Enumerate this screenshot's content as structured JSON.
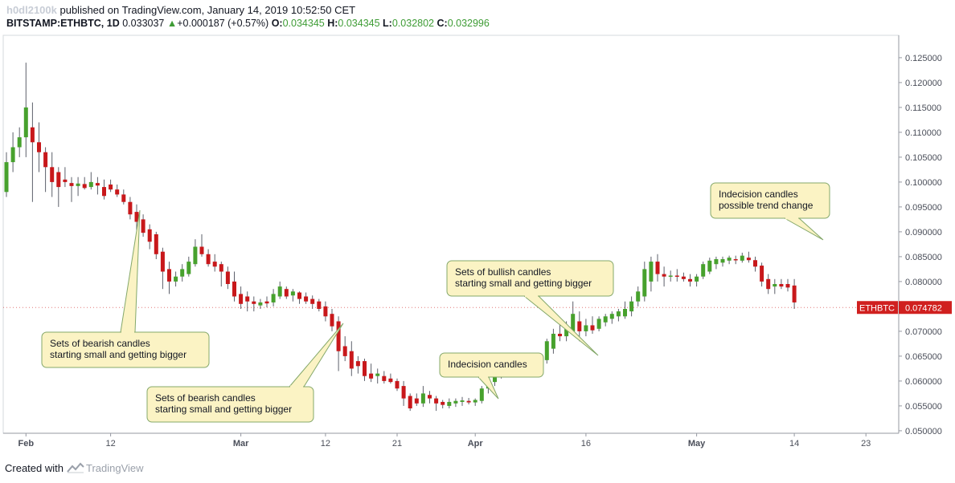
{
  "header": {
    "username": "h0dl2100k",
    "published_text": " published on TradingView.com, January 14, 2019 10:52:50 CET",
    "symbol": "BITSTAMP:ETHBTC, 1D",
    "last": "0.033037",
    "change_arrow": "▲",
    "change": "+0.000187 (+0.57%)",
    "o_label": "O:",
    "o_value": "0.034345",
    "h_label": "H:",
    "h_value": "0.034345",
    "l_label": "L:",
    "l_value": "0.032802",
    "c_label": "C:",
    "c_value": "0.032996"
  },
  "footer": {
    "created_with": "Created with",
    "brand": "TradingView"
  },
  "colors": {
    "up": "#47a12d",
    "down": "#c8181b",
    "wick": "#5d606b",
    "callout_fill": "#fbf3c4",
    "callout_stroke": "#84a86a",
    "price_tag": "#d0201f",
    "axis": "#9598a1"
  },
  "chart_data": {
    "type": "candlestick",
    "y_ticks": [
      "0.125000",
      "0.120000",
      "0.115000",
      "0.110000",
      "0.105000",
      "0.100000",
      "0.095000",
      "0.090000",
      "0.085000",
      "0.080000",
      "0.075000",
      "0.070000",
      "0.065000",
      "0.060000",
      "0.055000",
      "0.050000"
    ],
    "ylim": [
      0.0495,
      0.1295
    ],
    "x_ticks": [
      {
        "label": "Feb",
        "index": 3,
        "bold": true
      },
      {
        "label": "12",
        "index": 16,
        "bold": false
      },
      {
        "label": "Mar",
        "index": 36,
        "bold": true
      },
      {
        "label": "12",
        "index": 49,
        "bold": false
      },
      {
        "label": "21",
        "index": 60,
        "bold": false
      },
      {
        "label": "Apr",
        "index": 72,
        "bold": true
      },
      {
        "label": "16",
        "index": 89,
        "bold": false
      },
      {
        "label": "May",
        "index": 106,
        "bold": true
      },
      {
        "label": "14",
        "index": 121,
        "bold": false
      },
      {
        "label": "23",
        "index": 132,
        "bold": false
      }
    ],
    "ohlc": [
      [
        0.098,
        0.106,
        0.097,
        0.104
      ],
      [
        0.104,
        0.11,
        0.102,
        0.107
      ],
      [
        0.107,
        0.111,
        0.105,
        0.109
      ],
      [
        0.109,
        0.124,
        0.105,
        0.115
      ],
      [
        0.111,
        0.116,
        0.096,
        0.108
      ],
      [
        0.108,
        0.112,
        0.102,
        0.106
      ],
      [
        0.106,
        0.107,
        0.098,
        0.103
      ],
      [
        0.103,
        0.106,
        0.097,
        0.1
      ],
      [
        0.102,
        0.103,
        0.095,
        0.099
      ],
      [
        0.1005,
        0.103,
        0.099,
        0.1
      ],
      [
        0.0998,
        0.101,
        0.096,
        0.0992
      ],
      [
        0.0992,
        0.101,
        0.0972,
        0.0997
      ],
      [
        0.0996,
        0.101,
        0.0985,
        0.0988
      ],
      [
        0.099,
        0.102,
        0.0985,
        0.1
      ],
      [
        0.0998,
        0.101,
        0.0975,
        0.0993
      ],
      [
        0.099,
        0.1005,
        0.0965,
        0.0972
      ],
      [
        0.0995,
        0.1005,
        0.098,
        0.0985
      ],
      [
        0.0985,
        0.0995,
        0.097,
        0.0975
      ],
      [
        0.0975,
        0.0985,
        0.0955,
        0.096
      ],
      [
        0.096,
        0.097,
        0.0925,
        0.0935
      ],
      [
        0.094,
        0.0955,
        0.09,
        0.092
      ],
      [
        0.0925,
        0.0935,
        0.089,
        0.0898
      ],
      [
        0.0905,
        0.0915,
        0.0865,
        0.088
      ],
      [
        0.0895,
        0.09,
        0.0845,
        0.0855
      ],
      [
        0.086,
        0.0868,
        0.0785,
        0.082
      ],
      [
        0.0825,
        0.084,
        0.0775,
        0.08
      ],
      [
        0.08,
        0.082,
        0.079,
        0.081
      ],
      [
        0.081,
        0.0835,
        0.08,
        0.0825
      ],
      [
        0.0815,
        0.085,
        0.081,
        0.084
      ],
      [
        0.0835,
        0.0885,
        0.083,
        0.087
      ],
      [
        0.087,
        0.0895,
        0.085,
        0.0855
      ],
      [
        0.0855,
        0.0865,
        0.083,
        0.0835
      ],
      [
        0.084,
        0.0855,
        0.082,
        0.083
      ],
      [
        0.0835,
        0.084,
        0.079,
        0.082
      ],
      [
        0.082,
        0.083,
        0.0785,
        0.0795
      ],
      [
        0.08,
        0.082,
        0.076,
        0.077
      ],
      [
        0.0775,
        0.079,
        0.0745,
        0.0755
      ],
      [
        0.077,
        0.078,
        0.074,
        0.076
      ],
      [
        0.076,
        0.077,
        0.074,
        0.0755
      ],
      [
        0.0752,
        0.0765,
        0.0745,
        0.0758
      ],
      [
        0.076,
        0.077,
        0.0748,
        0.0756
      ],
      [
        0.0758,
        0.0785,
        0.075,
        0.0775
      ],
      [
        0.077,
        0.08,
        0.0765,
        0.079
      ],
      [
        0.0785,
        0.079,
        0.0765,
        0.077
      ],
      [
        0.0772,
        0.0785,
        0.076,
        0.078
      ],
      [
        0.0778,
        0.078,
        0.0755,
        0.0765
      ],
      [
        0.077,
        0.0778,
        0.0755,
        0.076
      ],
      [
        0.0765,
        0.0772,
        0.0745,
        0.0755
      ],
      [
        0.076,
        0.0765,
        0.074,
        0.0745
      ],
      [
        0.075,
        0.076,
        0.072,
        0.073
      ],
      [
        0.0735,
        0.0745,
        0.07,
        0.071
      ],
      [
        0.072,
        0.073,
        0.062,
        0.066
      ],
      [
        0.067,
        0.069,
        0.064,
        0.065
      ],
      [
        0.066,
        0.068,
        0.061,
        0.0625
      ],
      [
        0.064,
        0.065,
        0.0615,
        0.063
      ],
      [
        0.064,
        0.0645,
        0.06,
        0.061
      ],
      [
        0.0615,
        0.0635,
        0.0598,
        0.0605
      ],
      [
        0.061,
        0.0625,
        0.0595,
        0.0615
      ],
      [
        0.061,
        0.062,
        0.0595,
        0.06
      ],
      [
        0.0605,
        0.0615,
        0.0595,
        0.0598
      ],
      [
        0.06,
        0.0605,
        0.058,
        0.0585
      ],
      [
        0.059,
        0.06,
        0.055,
        0.0565
      ],
      [
        0.057,
        0.0575,
        0.054,
        0.0545
      ],
      [
        0.0565,
        0.0575,
        0.055,
        0.0555
      ],
      [
        0.0555,
        0.059,
        0.0548,
        0.0575
      ],
      [
        0.0572,
        0.058,
        0.0555,
        0.0565
      ],
      [
        0.0565,
        0.057,
        0.054,
        0.0555
      ],
      [
        0.0558,
        0.0562,
        0.0545,
        0.0552
      ],
      [
        0.055,
        0.0565,
        0.0545,
        0.0558
      ],
      [
        0.0555,
        0.0565,
        0.0548,
        0.056
      ],
      [
        0.0558,
        0.0568,
        0.055,
        0.0561
      ],
      [
        0.056,
        0.0566,
        0.0553,
        0.0557
      ],
      [
        0.0557,
        0.0565,
        0.055,
        0.0562
      ],
      [
        0.056,
        0.059,
        0.0555,
        0.0585
      ],
      [
        0.0585,
        0.061,
        0.0575,
        0.06
      ],
      [
        0.0598,
        0.063,
        0.059,
        0.062
      ],
      [
        0.0615,
        0.064,
        0.0605,
        0.063
      ],
      [
        0.0625,
        0.065,
        0.0615,
        0.0635
      ],
      [
        0.063,
        0.064,
        0.062,
        0.0628
      ],
      [
        0.0628,
        0.0645,
        0.0625,
        0.0638
      ],
      [
        0.0635,
        0.0648,
        0.063,
        0.064
      ],
      [
        0.0638,
        0.0648,
        0.0632,
        0.0642
      ],
      [
        0.064,
        0.065,
        0.0635,
        0.0645
      ],
      [
        0.0642,
        0.0685,
        0.0635,
        0.068
      ],
      [
        0.0665,
        0.0705,
        0.0655,
        0.0695
      ],
      [
        0.0695,
        0.0715,
        0.068,
        0.069
      ],
      [
        0.069,
        0.072,
        0.068,
        0.0705
      ],
      [
        0.07,
        0.076,
        0.0695,
        0.0735
      ],
      [
        0.072,
        0.074,
        0.068,
        0.07
      ],
      [
        0.07,
        0.0725,
        0.069,
        0.0712
      ],
      [
        0.0712,
        0.073,
        0.0695,
        0.0702
      ],
      [
        0.0705,
        0.073,
        0.07,
        0.0725
      ],
      [
        0.0718,
        0.0735,
        0.071,
        0.073
      ],
      [
        0.0725,
        0.074,
        0.0715,
        0.0735
      ],
      [
        0.073,
        0.0745,
        0.072,
        0.074
      ],
      [
        0.073,
        0.076,
        0.0725,
        0.0745
      ],
      [
        0.074,
        0.077,
        0.073,
        0.076
      ],
      [
        0.076,
        0.079,
        0.075,
        0.078
      ],
      [
        0.077,
        0.084,
        0.076,
        0.0825
      ],
      [
        0.08,
        0.085,
        0.078,
        0.084
      ],
      [
        0.084,
        0.0855,
        0.08,
        0.0815
      ],
      [
        0.0815,
        0.083,
        0.079,
        0.081
      ],
      [
        0.081,
        0.0822,
        0.08,
        0.0812
      ],
      [
        0.0812,
        0.0825,
        0.08,
        0.081
      ],
      [
        0.081,
        0.0818,
        0.08,
        0.0805
      ],
      [
        0.0805,
        0.0815,
        0.079,
        0.08
      ],
      [
        0.08,
        0.0815,
        0.079,
        0.081
      ],
      [
        0.081,
        0.084,
        0.0805,
        0.0835
      ],
      [
        0.082,
        0.0848,
        0.0815,
        0.0842
      ],
      [
        0.0835,
        0.085,
        0.0825,
        0.0845
      ],
      [
        0.0838,
        0.085,
        0.083,
        0.0845
      ],
      [
        0.0842,
        0.0852,
        0.0835,
        0.0848
      ],
      [
        0.0845,
        0.0852,
        0.0835,
        0.0843
      ],
      [
        0.0842,
        0.0858,
        0.0838,
        0.0852
      ],
      [
        0.0848,
        0.086,
        0.0838,
        0.0843
      ],
      [
        0.0843,
        0.085,
        0.082,
        0.083
      ],
      [
        0.0832,
        0.0838,
        0.079,
        0.08
      ],
      [
        0.0805,
        0.0815,
        0.0775,
        0.0785
      ],
      [
        0.079,
        0.0805,
        0.0775,
        0.0795
      ],
      [
        0.0795,
        0.0805,
        0.0785,
        0.079
      ],
      [
        0.0795,
        0.0805,
        0.078,
        0.0788
      ],
      [
        0.0792,
        0.0805,
        0.0745,
        0.0758
      ]
    ],
    "last_price": {
      "symbol": "ETHBTC",
      "value": "0.074782",
      "numeric": 0.074782
    },
    "annotations": [
      {
        "lines": [
          "Sets of bearish candles",
          "starting small and getting bigger"
        ]
      },
      {
        "lines": [
          "Sets of bearish candles",
          "starting small and getting bigger"
        ]
      },
      {
        "lines": [
          "Indecision candles"
        ]
      },
      {
        "lines": [
          "Sets of bullish candles",
          "starting small and getting bigger"
        ]
      },
      {
        "lines": [
          "Indecision candles",
          "possible trend change"
        ]
      }
    ]
  }
}
